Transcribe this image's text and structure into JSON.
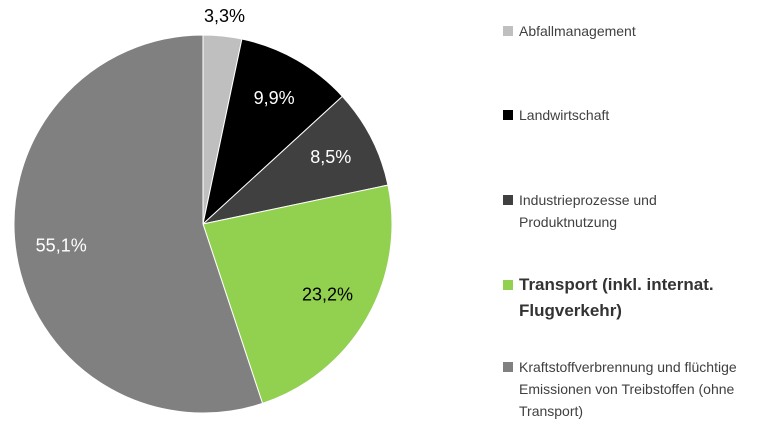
{
  "chart_data": {
    "type": "pie",
    "categories": [
      "Abfallmanagement",
      "Landwirtschaft",
      "Industrieprozesse und Produktnutzung",
      "Transport (inkl. internat. Flugverkehr)",
      "Kraftstoffverbrennung und flüchtige Emissionen von Treibstoffen (ohne Transport)"
    ],
    "values": [
      3.3,
      9.9,
      8.5,
      23.2,
      55.1
    ],
    "value_labels": [
      "3,3%",
      "9,9%",
      "8,5%",
      "23,2%",
      "55,1%"
    ],
    "colors": [
      "#bfbfbf",
      "#000000",
      "#404040",
      "#92d050",
      "#808080"
    ],
    "legend": "right"
  }
}
